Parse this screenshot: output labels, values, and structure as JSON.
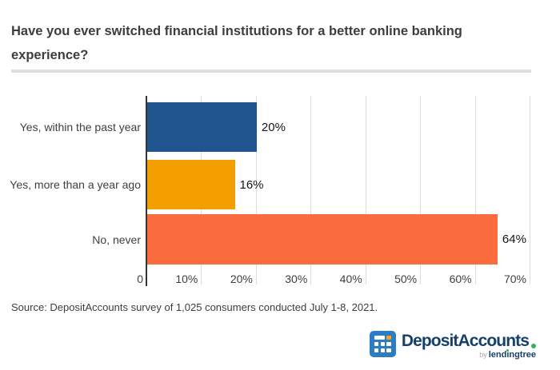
{
  "title": "Have you ever switched financial institutions for a better online banking experience?",
  "source_note": "Source: DepositAccounts survey of 1,025 consumers conducted July 1-8, 2021.",
  "chart_data": {
    "type": "bar",
    "orientation": "horizontal",
    "title": "Have you ever switched financial institutions for a better online banking experience?",
    "categories": [
      "Yes, within the past year",
      "Yes, more than a year ago",
      "No, never"
    ],
    "values": [
      20,
      16,
      64
    ],
    "value_labels": [
      "20%",
      "16%",
      "64%"
    ],
    "bar_colors": [
      "#20548c",
      "#f39f00",
      "#fa6c3e"
    ],
    "xlabel": "",
    "ylabel": "",
    "xlim": [
      0,
      70
    ],
    "x_tick_values": [
      0,
      10,
      20,
      30,
      40,
      50,
      60,
      70
    ],
    "x_tick_labels": [
      "0",
      "10%",
      "20%",
      "30%",
      "40%",
      "50%",
      "60%",
      "70%"
    ],
    "grid": true,
    "legend": "none"
  },
  "logo": {
    "brand": "DepositAccounts",
    "byline_prefix": "by",
    "byline_brand": "lendingtree",
    "icon_name": "keypad-grid-icon",
    "brand_color": "#15406a",
    "icon_color": "#2e7cc1",
    "accent_orange": "#f6a21d",
    "accent_green": "#2eb25c"
  }
}
